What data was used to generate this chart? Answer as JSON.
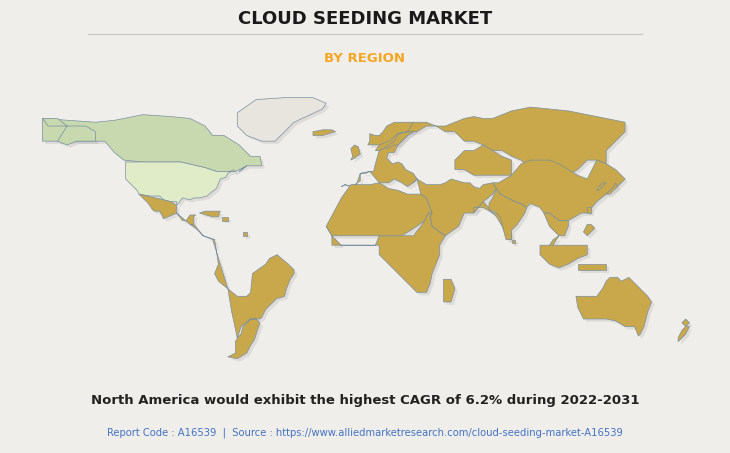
{
  "title": "CLOUD SEEDING MARKET",
  "subtitle": "BY REGION",
  "subtitle_color": "#F5A623",
  "title_color": "#1a1a1a",
  "background_color": "#f0eeea",
  "footer_bold": "North America would exhibit the highest CAGR of 6.2% during 2022-2031",
  "footer_source": "Report Code : A16539  |  Source : https://www.alliedmarketresearch.com/cloud-seeding-market-A16539",
  "footer_source_color": "#4472c4",
  "canada_color": "#c8d9b0",
  "usa_color": "#e0ebc8",
  "other_na_color": "#c8a84b",
  "other_regions_color": "#c8a84b",
  "no_data_color": "#e8e4de",
  "border_color": "#7a8fa0",
  "border_width": 0.5,
  "shadow_color": "#a0a0a0",
  "figsize": [
    7.3,
    4.53
  ],
  "dpi": 100
}
